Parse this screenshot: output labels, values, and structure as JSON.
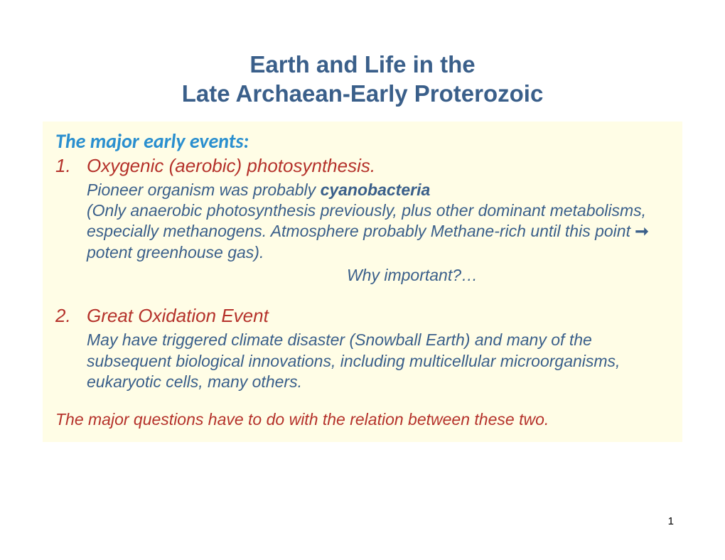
{
  "title": {
    "line1": "Earth and Life in the",
    "line2": "Late Archaean-Early Proterozoic"
  },
  "section_header": "The major early events:",
  "item1": {
    "num": "1.",
    "title": "Oxygenic (aerobic) photosynthesis.",
    "detail_prefix": "Pioneer organism was probably ",
    "detail_bold": "cyanobacteria",
    "detail_body1": "(Only anaerobic photosynthesis previously, plus other dominant metabolisms, especially methanogens.  Atmosphere probably Methane-rich until this point ",
    "arrow": "➞",
    "detail_body2": " potent greenhouse gas).",
    "why": "Why important?…"
  },
  "item2": {
    "num": "2.",
    "title": "Great Oxidation Event",
    "detail": "May have triggered climate disaster (Snowball Earth) and many of the subsequent biological innovations, including multicellular microorganisms, eukaryotic cells, many others."
  },
  "footer": "The major questions have to do with the relation between these two.",
  "page_number": "1",
  "colors": {
    "title_color": "#3a5f8a",
    "section_header_color": "#2a8fcf",
    "list_accent_color": "#b5322b",
    "body_color": "#3a5f8a",
    "content_bg": "#fffde6",
    "page_bg": "#ffffff"
  },
  "typography": {
    "title_fontsize": 33,
    "section_header_fontsize": 28,
    "list_title_fontsize": 26,
    "body_fontsize": 23,
    "page_number_fontsize": 15,
    "main_font": "Arial",
    "section_font": "Calibri"
  }
}
